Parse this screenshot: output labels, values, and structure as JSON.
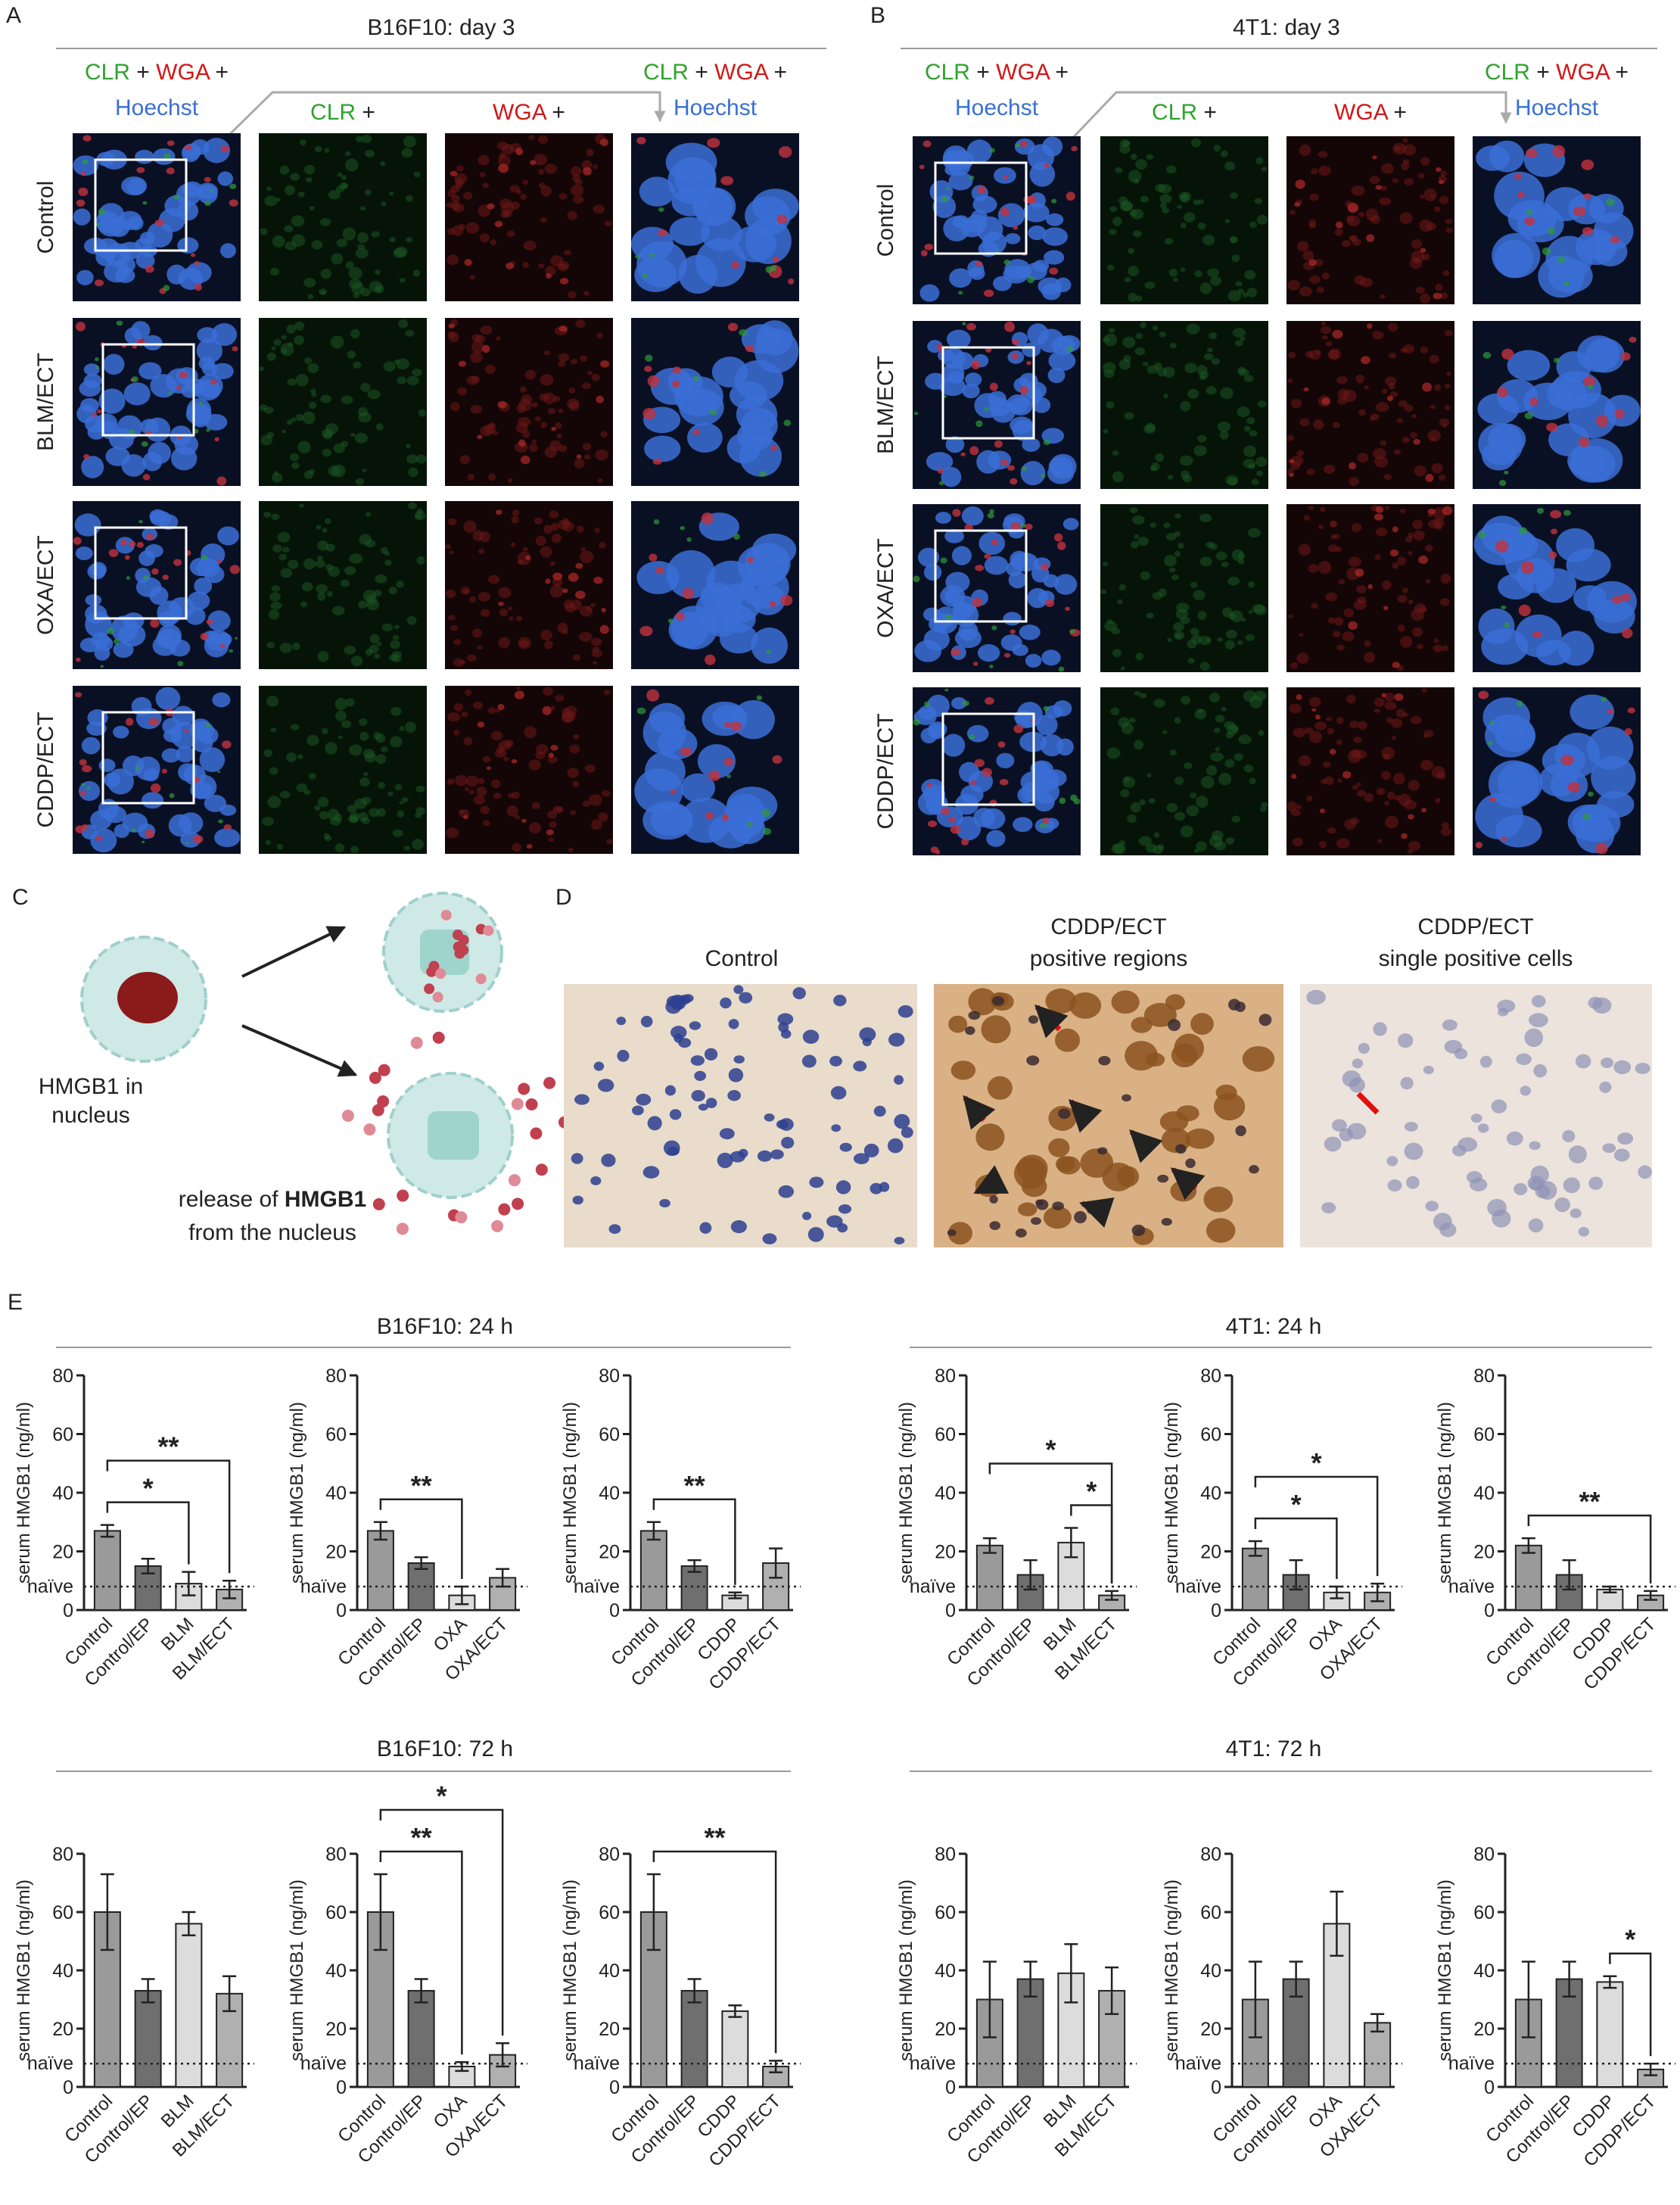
{
  "panel_a": {
    "letter": "A",
    "title": "B16F10: day 3",
    "rows": [
      "Control",
      "BLM/ECT",
      "OXA/ECT",
      "CDDP/ECT"
    ]
  },
  "panel_b": {
    "letter": "B",
    "title": "4T1: day 3",
    "rows": [
      "Control",
      "BLM/ECT",
      "OXA/ECT",
      "CDDP/ECT"
    ]
  },
  "stains": {
    "clr": "CLR",
    "wga": "WGA",
    "hoechst": "Hoechst",
    "plus": "+"
  },
  "panel_c": {
    "letter": "C",
    "nucleus_text": [
      "HMGB1 in",
      "nucleus"
    ],
    "release_text": {
      "before": "release of",
      "bold": "HMGB1",
      "line2": "from the nucleus"
    }
  },
  "panel_d": {
    "letter": "D",
    "titles": [
      [
        "Control"
      ],
      [
        "CDDP/ECT",
        "positive regions"
      ],
      [
        "CDDP/ECT",
        "single positive cells"
      ]
    ]
  },
  "panel_e": {
    "letter": "E",
    "groups": [
      "B16F10: 24 h",
      "4T1: 24 h",
      "B16F10: 72 h",
      "4T1: 72 h"
    ]
  },
  "chart_data": [
    {
      "type": "bar",
      "y_label": "serum HMGB1 (ng/ml)",
      "categories": [
        "Control",
        "Control/EP",
        "BLM",
        "BLM/ECT"
      ],
      "values": [
        27,
        15,
        9,
        7
      ],
      "errors": [
        2,
        2.5,
        4,
        3
      ],
      "colors": [
        "#9a9a9a",
        "#6f6f6f",
        "#dcdcdc",
        "#b0b0b0"
      ],
      "ylim": [
        0,
        80
      ],
      "yticks": [
        0,
        20,
        40,
        60,
        80
      ],
      "reference": {
        "value": 8,
        "label": "naïve"
      },
      "annotations": [
        {
          "from": "Control",
          "to": "BLM",
          "label": "*"
        },
        {
          "from": "Control",
          "to": "BLM/ECT",
          "label": "**"
        }
      ]
    },
    {
      "type": "bar",
      "y_label": "serum HMGB1 (ng/ml)",
      "categories": [
        "Control",
        "Control/EP",
        "OXA",
        "OXA/ECT"
      ],
      "values": [
        27,
        16,
        5,
        11
      ],
      "errors": [
        3,
        2,
        3,
        3
      ],
      "colors": [
        "#9a9a9a",
        "#6f6f6f",
        "#dcdcdc",
        "#b0b0b0"
      ],
      "ylim": [
        0,
        80
      ],
      "yticks": [
        0,
        20,
        40,
        60,
        80
      ],
      "reference": {
        "value": 8,
        "label": "naïve"
      },
      "annotations": [
        {
          "from": "Control",
          "to": "OXA",
          "label": "**"
        }
      ]
    },
    {
      "type": "bar",
      "y_label": "serum HMGB1 (ng/ml)",
      "categories": [
        "Control",
        "Control/EP",
        "CDDP",
        "CDDP/ECT"
      ],
      "values": [
        27,
        15,
        5,
        16
      ],
      "errors": [
        3,
        2,
        1,
        5
      ],
      "colors": [
        "#9a9a9a",
        "#6f6f6f",
        "#dcdcdc",
        "#b0b0b0"
      ],
      "ylim": [
        0,
        80
      ],
      "yticks": [
        0,
        20,
        40,
        60,
        80
      ],
      "reference": {
        "value": 8,
        "label": "naïve"
      },
      "annotations": [
        {
          "from": "Control",
          "to": "CDDP",
          "label": "**"
        }
      ]
    },
    {
      "type": "bar",
      "y_label": "serum HMGB1 (ng/ml)",
      "categories": [
        "Control",
        "Control/EP",
        "BLM",
        "BLM/ECT"
      ],
      "values": [
        22,
        12,
        23,
        5
      ],
      "errors": [
        2.5,
        5,
        5,
        1.5
      ],
      "colors": [
        "#9a9a9a",
        "#6f6f6f",
        "#dcdcdc",
        "#b0b0b0"
      ],
      "ylim": [
        0,
        80
      ],
      "yticks": [
        0,
        20,
        40,
        60,
        80
      ],
      "reference": {
        "value": 8,
        "label": "naïve"
      },
      "annotations": [
        {
          "from": "BLM",
          "to": "BLM/ECT",
          "label": "*"
        },
        {
          "from": "Control",
          "to": "BLM/ECT",
          "label": "*"
        }
      ]
    },
    {
      "type": "bar",
      "y_label": "serum HMGB1 (ng/ml)",
      "categories": [
        "Control",
        "Control/EP",
        "OXA",
        "OXA/ECT"
      ],
      "values": [
        21,
        12,
        6,
        6
      ],
      "errors": [
        2.5,
        5,
        2,
        3
      ],
      "colors": [
        "#9a9a9a",
        "#6f6f6f",
        "#dcdcdc",
        "#b0b0b0"
      ],
      "ylim": [
        0,
        80
      ],
      "yticks": [
        0,
        20,
        40,
        60,
        80
      ],
      "reference": {
        "value": 8,
        "label": "naïve"
      },
      "annotations": [
        {
          "from": "Control",
          "to": "OXA",
          "label": "*"
        },
        {
          "from": "Control",
          "to": "OXA/ECT",
          "label": "*"
        }
      ]
    },
    {
      "type": "bar",
      "y_label": "serum HMGB1 (ng/ml)",
      "categories": [
        "Control",
        "Control/EP",
        "CDDP",
        "CDDP/ECT"
      ],
      "values": [
        22,
        12,
        7,
        5
      ],
      "errors": [
        2.5,
        5,
        1,
        1.5
      ],
      "colors": [
        "#9a9a9a",
        "#6f6f6f",
        "#dcdcdc",
        "#b0b0b0"
      ],
      "ylim": [
        0,
        80
      ],
      "yticks": [
        0,
        20,
        40,
        60,
        80
      ],
      "reference": {
        "value": 8,
        "label": "naïve"
      },
      "annotations": [
        {
          "from": "Control",
          "to": "CDDP/ECT",
          "label": "**"
        }
      ]
    },
    {
      "type": "bar",
      "y_label": "serum HMGB1 (ng/ml)",
      "categories": [
        "Control",
        "Control/EP",
        "BLM",
        "BLM/ECT"
      ],
      "values": [
        60,
        33,
        56,
        32
      ],
      "errors": [
        13,
        4,
        4,
        6
      ],
      "colors": [
        "#9a9a9a",
        "#6f6f6f",
        "#dcdcdc",
        "#b0b0b0"
      ],
      "ylim": [
        0,
        80
      ],
      "yticks": [
        0,
        20,
        40,
        60,
        80
      ],
      "reference": {
        "value": 8,
        "label": "naïve"
      },
      "annotations": []
    },
    {
      "type": "bar",
      "y_label": "serum HMGB1 (ng/ml)",
      "categories": [
        "Control",
        "Control/EP",
        "OXA",
        "OXA/ECT"
      ],
      "values": [
        60,
        33,
        7,
        11
      ],
      "errors": [
        13,
        4,
        1.5,
        4
      ],
      "colors": [
        "#9a9a9a",
        "#6f6f6f",
        "#dcdcdc",
        "#b0b0b0"
      ],
      "ylim": [
        0,
        80
      ],
      "yticks": [
        0,
        20,
        40,
        60,
        80
      ],
      "reference": {
        "value": 8,
        "label": "naïve"
      },
      "annotations": [
        {
          "from": "Control",
          "to": "OXA",
          "label": "**"
        },
        {
          "from": "Control",
          "to": "OXA/ECT",
          "label": "*"
        }
      ]
    },
    {
      "type": "bar",
      "y_label": "serum HMGB1 (ng/ml)",
      "categories": [
        "Control",
        "Control/EP",
        "CDDP",
        "CDDP/ECT"
      ],
      "values": [
        60,
        33,
        26,
        7
      ],
      "errors": [
        13,
        4,
        2,
        2
      ],
      "colors": [
        "#9a9a9a",
        "#6f6f6f",
        "#dcdcdc",
        "#b0b0b0"
      ],
      "ylim": [
        0,
        80
      ],
      "yticks": [
        0,
        20,
        40,
        60,
        80
      ],
      "reference": {
        "value": 8,
        "label": "naïve"
      },
      "annotations": [
        {
          "from": "Control",
          "to": "CDDP/ECT",
          "label": "**"
        }
      ]
    },
    {
      "type": "bar",
      "y_label": "serum HMGB1 (ng/ml)",
      "categories": [
        "Control",
        "Control/EP",
        "BLM",
        "BLM/ECT"
      ],
      "values": [
        30,
        37,
        39,
        33
      ],
      "errors": [
        13,
        6,
        10,
        8
      ],
      "colors": [
        "#9a9a9a",
        "#6f6f6f",
        "#dcdcdc",
        "#b0b0b0"
      ],
      "ylim": [
        0,
        80
      ],
      "yticks": [
        0,
        20,
        40,
        60,
        80
      ],
      "reference": {
        "value": 8,
        "label": "naïve"
      },
      "annotations": []
    },
    {
      "type": "bar",
      "y_label": "serum HMGB1 (ng/ml)",
      "categories": [
        "Control",
        "Control/EP",
        "OXA",
        "OXA/ECT"
      ],
      "values": [
        30,
        37,
        56,
        22
      ],
      "errors": [
        13,
        6,
        11,
        3
      ],
      "colors": [
        "#9a9a9a",
        "#6f6f6f",
        "#dcdcdc",
        "#b0b0b0"
      ],
      "ylim": [
        0,
        80
      ],
      "yticks": [
        0,
        20,
        40,
        60,
        80
      ],
      "reference": {
        "value": 8,
        "label": "naïve"
      },
      "annotations": []
    },
    {
      "type": "bar",
      "y_label": "serum HMGB1 (ng/ml)",
      "categories": [
        "Control",
        "Control/EP",
        "CDDP",
        "CDDP/ECT"
      ],
      "values": [
        30,
        37,
        36,
        6
      ],
      "errors": [
        13,
        6,
        2,
        2
      ],
      "colors": [
        "#9a9a9a",
        "#6f6f6f",
        "#dcdcdc",
        "#b0b0b0"
      ],
      "ylim": [
        0,
        80
      ],
      "yticks": [
        0,
        20,
        40,
        60,
        80
      ],
      "reference": {
        "value": 8,
        "label": "naïve"
      },
      "annotations": [
        {
          "from": "CDDP",
          "to": "CDDP/ECT",
          "label": "*"
        }
      ]
    }
  ]
}
